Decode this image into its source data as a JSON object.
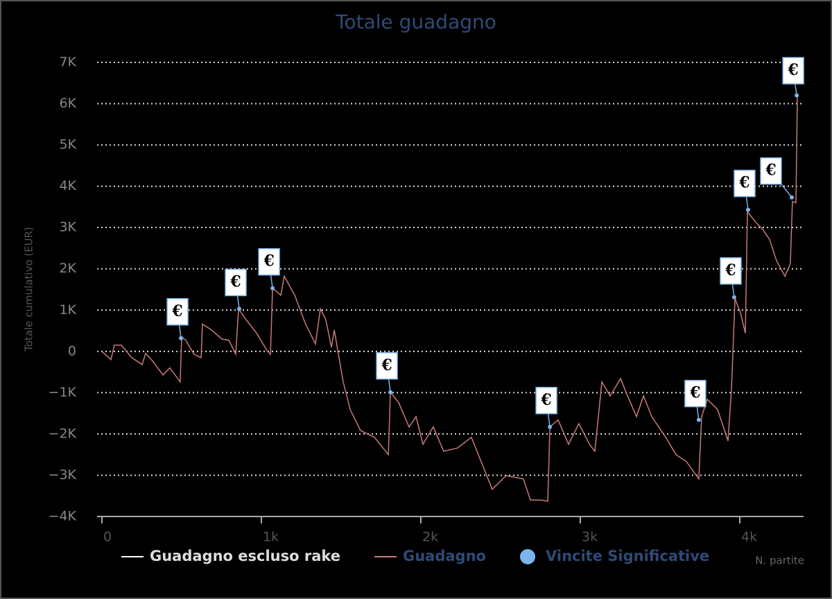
{
  "chart_data": {
    "type": "line",
    "title": "Totale guadagno",
    "y_label": "Totale cumulativo (EUR)",
    "x_label": "N. partite",
    "marker_label": "€",
    "xlim": [
      0,
      4400
    ],
    "ylim": [
      -4000,
      7000
    ],
    "xticks": [
      0,
      {
        "value": 1000,
        "label": "1k"
      },
      {
        "value": 2000,
        "label": "2k"
      },
      {
        "value": 3000,
        "label": "3k"
      },
      {
        "value": 4000,
        "label": "4k"
      }
    ],
    "yticks": [
      {
        "value": -4000,
        "label": "−4K"
      },
      {
        "value": -3000,
        "label": "−3K"
      },
      {
        "value": -2000,
        "label": "−2K"
      },
      {
        "value": -1000,
        "label": "−1K"
      },
      0,
      {
        "value": 1000,
        "label": "1K"
      },
      {
        "value": 2000,
        "label": "2K"
      },
      {
        "value": 3000,
        "label": "3K"
      },
      {
        "value": 4000,
        "label": "4K"
      },
      {
        "value": 5000,
        "label": "5K"
      },
      {
        "value": 6000,
        "label": "6K"
      },
      {
        "value": 7000,
        "label": "7K"
      }
    ],
    "grid": true,
    "series": [
      {
        "name": "Guadagno escluso rake",
        "color": "#ffffff",
        "kind": "line",
        "x": [],
        "values": []
      },
      {
        "name": "Guadagno",
        "color": "#c87a78",
        "kind": "line",
        "x": [
          0,
          57,
          78,
          122,
          187,
          252,
          274,
          317,
          383,
          426,
          491,
          500,
          526,
          578,
          622,
          630,
          687,
          752,
          796,
          839,
          857,
          904,
          970,
          1035,
          1057,
          1070,
          1122,
          1143,
          1209,
          1274,
          1339,
          1370,
          1404,
          1439,
          1457,
          1513,
          1557,
          1622,
          1709,
          1796,
          1809,
          1861,
          1926,
          1970,
          2013,
          2078,
          2143,
          2230,
          2317,
          2404,
          2448,
          2535,
          2643,
          2687,
          2752,
          2796,
          2809,
          2861,
          2926,
          2991,
          3057,
          3091,
          3135,
          3187,
          3252,
          3296,
          3352,
          3396,
          3448,
          3535,
          3600,
          3665,
          3743,
          3761,
          3796,
          3861,
          3926,
          3948,
          3970,
          4004,
          4035,
          4048,
          4100,
          4143,
          4187,
          4230,
          4283,
          4317,
          4330,
          4352,
          4361
        ],
        "values": [
          0,
          -200,
          150,
          150,
          -150,
          -320,
          -50,
          -230,
          -570,
          -400,
          -740,
          350,
          270,
          -70,
          -150,
          660,
          520,
          300,
          270,
          -70,
          1030,
          770,
          440,
          20,
          -70,
          1530,
          1360,
          1820,
          1360,
          690,
          180,
          1030,
          770,
          100,
          520,
          -740,
          -1410,
          -1920,
          -2080,
          -2500,
          -990,
          -1240,
          -1830,
          -1580,
          -2250,
          -1830,
          -2420,
          -2340,
          -2080,
          -2920,
          -3340,
          -3010,
          -3090,
          -3600,
          -3600,
          -3630,
          -1830,
          -1660,
          -2250,
          -1750,
          -2250,
          -2420,
          -740,
          -1080,
          -660,
          -1080,
          -1580,
          -1080,
          -1580,
          -2080,
          -2500,
          -2670,
          -3090,
          -1580,
          -1160,
          -1410,
          -2170,
          -910,
          1280,
          940,
          440,
          3380,
          3130,
          2960,
          2710,
          2200,
          1820,
          2120,
          3630,
          3600,
          6150
        ]
      },
      {
        "name": "Vincite Significative",
        "color": "#7cb5ec",
        "kind": "scatter",
        "x": [
          496,
          861,
          1070,
          1809,
          2809,
          3743,
          3965,
          4052,
          4326,
          4357
        ],
        "values": [
          320,
          1030,
          1530,
          -990,
          -1830,
          -1660,
          1310,
          3430,
          3730,
          6200
        ]
      }
    ]
  }
}
